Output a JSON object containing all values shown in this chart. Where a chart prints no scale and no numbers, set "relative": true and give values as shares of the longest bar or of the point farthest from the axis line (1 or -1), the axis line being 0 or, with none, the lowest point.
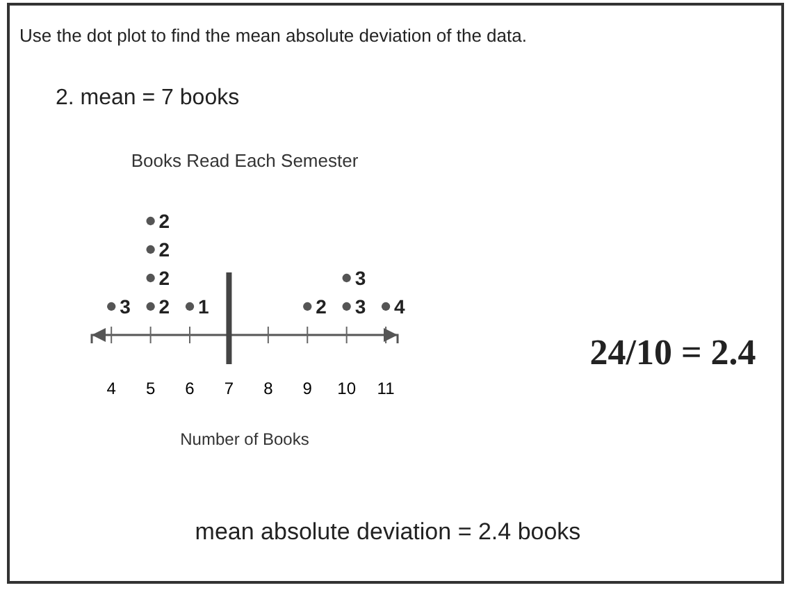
{
  "chart_data": {
    "type": "scatter",
    "title": "Books Read Each Semester",
    "xlabel": "Number of Books",
    "x": [
      4,
      5,
      5,
      5,
      5,
      6,
      9,
      10,
      10,
      11
    ],
    "values": [
      0.25,
      0.25,
      0.5,
      0.75,
      1,
      0.25,
      0.25,
      0.25,
      0.5,
      0.25
    ],
    "relative": true,
    "color": "#555555",
    "marker": "circle",
    "xlim": [
      3.5,
      11.3
    ],
    "xticks": [
      4,
      5,
      6,
      7,
      8,
      9,
      10,
      11
    ],
    "ref_lines": [
      {
        "axis": "x",
        "value": 7,
        "color": "#444444"
      }
    ],
    "annotations": [
      "Use the dot plot to find the mean absolute deviation of the data.",
      "2.  mean = 7 books",
      "24/10 = 2.4",
      "mean absolute deviation = 2.4 books",
      {
        "text": "3",
        "x": 4,
        "y": 0.25
      },
      {
        "text": "2",
        "x": 5,
        "y": 0.25
      },
      {
        "text": "2",
        "x": 5,
        "y": 0.5
      },
      {
        "text": "2",
        "x": 5,
        "y": 0.75
      },
      {
        "text": "2",
        "x": 5,
        "y": 1
      },
      {
        "text": "1",
        "x": 6,
        "y": 0.25
      },
      {
        "text": "2",
        "x": 9,
        "y": 0.25
      },
      {
        "text": "3",
        "x": 10,
        "y": 0.25
      },
      {
        "text": "3",
        "x": 10,
        "y": 0.5
      },
      {
        "text": "4",
        "x": 11,
        "y": 0.25
      }
    ]
  }
}
